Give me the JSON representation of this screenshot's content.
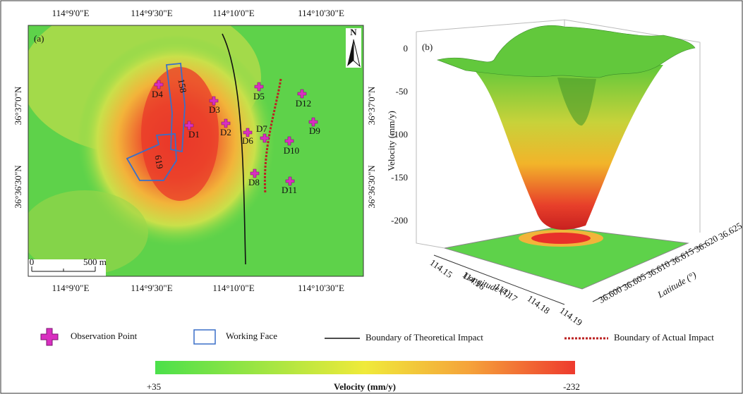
{
  "panel_a": {
    "label": "(a)",
    "north": "N",
    "lon_labels_top": [
      "114°9'0\"E",
      "114°9'30\"E",
      "114°10'0\"E",
      "114°10'30\"E"
    ],
    "lon_labels_bottom": [
      "114°9'0\"E",
      "114°9'30\"E",
      "114°10'0\"E",
      "114°10'30\"E"
    ],
    "lat_labels_left": [
      "36°37'0\"N",
      "36°36'30\"N"
    ],
    "lat_labels_right": [
      "36°37'0\"N",
      "36°36'30\"N"
    ],
    "scale_bar": {
      "start": "0",
      "end": "500 m"
    },
    "working_faces": [
      "158",
      "619"
    ],
    "points": [
      "D4",
      "D3",
      "D1",
      "D2",
      "D5",
      "D6",
      "D7",
      "D8",
      "D12",
      "D9",
      "D10",
      "D11"
    ]
  },
  "panel_b": {
    "label": "(b)",
    "z_axis_title": "Velocity (mm/y)",
    "z_ticks": [
      "0",
      "-50",
      "-100",
      "-150",
      "-200"
    ],
    "x_axis_title": "Longitude (°)",
    "x_ticks": [
      "114.15",
      "114.16",
      "114.17",
      "114.18",
      "114.19"
    ],
    "y_axis_title": "Latitude (°)",
    "y_ticks": [
      "36.600",
      "36.605",
      "36.610",
      "36.615",
      "36.620",
      "36.625"
    ]
  },
  "legend": [
    "Observation Point",
    "Working Face",
    "Boundary of Theoretical Impact",
    "Boundary of Actual Impact"
  ],
  "colorbar": {
    "min_label": "+35",
    "title": "Velocity (mm/y)",
    "max_label": "-232"
  }
}
